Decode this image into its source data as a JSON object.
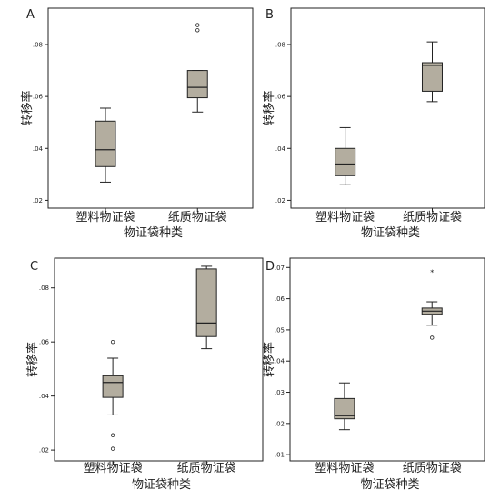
{
  "colors": {
    "box_fill": "#b3ad9f",
    "stroke": "#222222",
    "background": "#ffffff"
  },
  "chart_data": [
    {
      "type": "box",
      "panel_label": "A",
      "categories": [
        "塑料物证袋",
        "纸质物证袋"
      ],
      "xlabel": "物证袋种类",
      "ylabel": "转移率",
      "yticks": [
        ".02",
        ".04",
        ".06",
        ".08"
      ],
      "ylim": [
        0.017,
        0.094
      ],
      "boxes": [
        {
          "min": 0.027,
          "q1": 0.033,
          "median": 0.0395,
          "q3": 0.0505,
          "max": 0.0555,
          "outliers": []
        },
        {
          "min": 0.054,
          "q1": 0.0595,
          "median": 0.0635,
          "q3": 0.07,
          "max": 0.07,
          "outliers": [
            0.0855,
            0.0875
          ]
        }
      ]
    },
    {
      "type": "box",
      "panel_label": "B",
      "categories": [
        "塑料物证袋",
        "纸质物证袋"
      ],
      "xlabel": "物证袋种类",
      "ylabel": "转移率",
      "yticks": [
        ".02",
        ".04",
        ".06",
        ".08"
      ],
      "ylim": [
        0.017,
        0.094
      ],
      "boxes": [
        {
          "min": 0.026,
          "q1": 0.0295,
          "median": 0.034,
          "q3": 0.04,
          "max": 0.048,
          "outliers": []
        },
        {
          "min": 0.058,
          "q1": 0.062,
          "median": 0.072,
          "q3": 0.073,
          "max": 0.081,
          "outliers": []
        }
      ]
    },
    {
      "type": "box",
      "panel_label": "C",
      "categories": [
        "塑料物证袋",
        "纸质物证袋"
      ],
      "xlabel": "物证袋种类",
      "ylabel": "转移率",
      "yticks": [
        ".02",
        ".04",
        ".06",
        ".08"
      ],
      "ylim": [
        0.016,
        0.091
      ],
      "boxes": [
        {
          "min": 0.033,
          "q1": 0.0395,
          "median": 0.045,
          "q3": 0.0475,
          "max": 0.054,
          "outliers": [
            0.06,
            0.0255,
            0.0205
          ]
        },
        {
          "min": 0.0575,
          "q1": 0.062,
          "median": 0.067,
          "q3": 0.087,
          "max": 0.088,
          "outliers": []
        }
      ]
    },
    {
      "type": "box",
      "panel_label": "D",
      "categories": [
        "塑料物证袋",
        "纸质物证袋"
      ],
      "xlabel": "物证袋种类",
      "ylabel": "转移率",
      "yticks": [
        ".01",
        ".02",
        ".03",
        ".04",
        ".05",
        ".06",
        ".07"
      ],
      "ylim": [
        0.008,
        0.073
      ],
      "boxes": [
        {
          "min": 0.018,
          "q1": 0.0215,
          "median": 0.0225,
          "q3": 0.028,
          "max": 0.033,
          "outliers": [],
          "extremes": []
        },
        {
          "min": 0.0515,
          "q1": 0.055,
          "median": 0.056,
          "q3": 0.057,
          "max": 0.059,
          "outliers": [
            0.0475
          ],
          "extremes": [
            0.0685
          ]
        }
      ]
    }
  ]
}
